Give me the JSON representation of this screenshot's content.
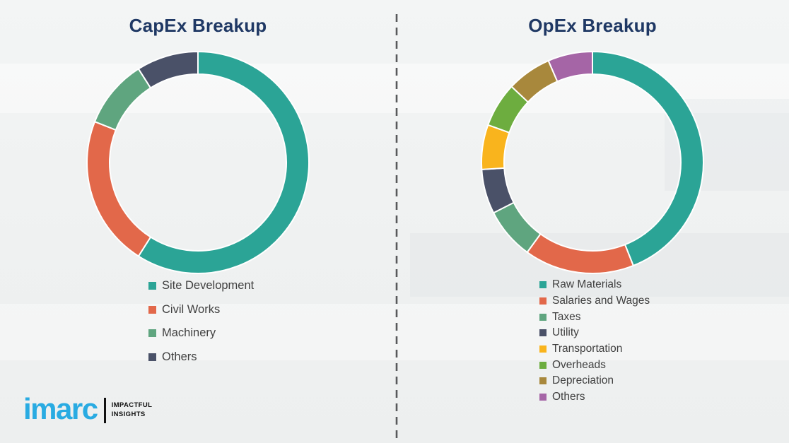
{
  "page": {
    "background_color": "#F0F2F2"
  },
  "divider": {
    "color": "#58595B",
    "style": "dashed"
  },
  "chart_data": [
    {
      "type": "donut",
      "title": "CapEx Breakup",
      "title_color": "#1F3864",
      "legend_position": "bottom",
      "start_angle_deg": 0,
      "direction": "clockwise",
      "units": "percent (estimated from arc angles)",
      "segments": [
        {
          "label": "Site Development",
          "value": 59,
          "color": "#2BA496"
        },
        {
          "label": "Civil Works",
          "value": 22,
          "color": "#E2684A"
        },
        {
          "label": "Machinery",
          "value": 10,
          "color": "#5FA57F"
        },
        {
          "label": "Others",
          "value": 9,
          "color": "#4A5168"
        }
      ]
    },
    {
      "type": "donut",
      "title": "OpEx Breakup",
      "title_color": "#1F3864",
      "legend_position": "bottom",
      "start_angle_deg": 0,
      "direction": "clockwise",
      "units": "percent (estimated from arc angles)",
      "segments": [
        {
          "label": "Raw Materials",
          "value": 44,
          "color": "#2BA496"
        },
        {
          "label": "Salaries and Wages",
          "value": 16,
          "color": "#E2684A"
        },
        {
          "label": "Taxes",
          "value": 7.5,
          "color": "#5FA57F"
        },
        {
          "label": "Utility",
          "value": 6.5,
          "color": "#4A5168"
        },
        {
          "label": "Transportation",
          "value": 6.5,
          "color": "#F9B41D"
        },
        {
          "label": "Overheads",
          "value": 6.5,
          "color": "#6DAD3F"
        },
        {
          "label": "Depreciation",
          "value": 6.5,
          "color": "#A8883C"
        },
        {
          "label": "Others",
          "value": 6.5,
          "color": "#A565A6"
        }
      ]
    }
  ],
  "logo": {
    "brand": "imarc",
    "tagline_line1": "IMPACTFUL",
    "tagline_line2": "INSIGHTS",
    "brand_color": "#29ABE2"
  }
}
